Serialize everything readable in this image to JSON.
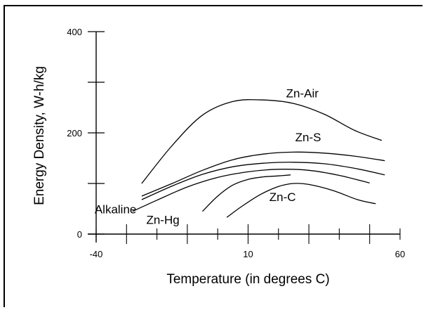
{
  "chart_data": {
    "type": "line",
    "title": "",
    "xlabel": "Temperature (in degrees C)",
    "ylabel": "Energy Density, W-h/kg",
    "xlim": [
      -40,
      60
    ],
    "ylim": [
      0,
      400
    ],
    "x_tick_labels": [
      {
        "value": -40,
        "label": "-40"
      },
      {
        "value": 10,
        "label": "10"
      },
      {
        "value": 60,
        "label": "60"
      }
    ],
    "x_ticks": [
      -40,
      -30,
      -20,
      -10,
      0,
      10,
      20,
      30,
      40,
      50,
      60
    ],
    "x_major_ticks": [
      -30,
      -10,
      10,
      30,
      50
    ],
    "y_tick_labels": [
      {
        "value": 0,
        "label": "0"
      },
      {
        "value": 200,
        "label": "200"
      },
      {
        "value": 400,
        "label": "400"
      }
    ],
    "y_ticks": [
      0,
      100,
      200,
      300,
      400
    ],
    "grid": false,
    "legend": "none",
    "series": [
      {
        "name": "Zn-Air",
        "label_at": [
          22.5,
          270
        ],
        "points": [
          [
            -25,
            100
          ],
          [
            -15,
            175
          ],
          [
            -5,
            235
          ],
          [
            5,
            262
          ],
          [
            15,
            265
          ],
          [
            25,
            258
          ],
          [
            35,
            237
          ],
          [
            45,
            205
          ],
          [
            54,
            185
          ]
        ]
      },
      {
        "name": "Zn-S",
        "label_at": [
          25.5,
          183
        ],
        "points": [
          [
            -25,
            75
          ],
          [
            -15,
            100
          ],
          [
            -5,
            126
          ],
          [
            5,
            147
          ],
          [
            15,
            158
          ],
          [
            25,
            162
          ],
          [
            35,
            160
          ],
          [
            45,
            154
          ],
          [
            55,
            145
          ]
        ]
      },
      {
        "name": "",
        "points": [
          [
            -25,
            68
          ],
          [
            -15,
            95
          ],
          [
            -5,
            118
          ],
          [
            5,
            133
          ],
          [
            15,
            140
          ],
          [
            25,
            142
          ],
          [
            35,
            139
          ],
          [
            45,
            130
          ],
          [
            55,
            117
          ]
        ]
      },
      {
        "name": "Alkaline",
        "label_at": [
          -40.5,
          41
        ],
        "points": [
          [
            -28,
            45
          ],
          [
            -20,
            67
          ],
          [
            -10,
            93
          ],
          [
            0,
            112
          ],
          [
            10,
            123
          ],
          [
            20,
            128
          ],
          [
            30,
            126
          ],
          [
            40,
            116
          ],
          [
            50,
            101
          ]
        ]
      },
      {
        "name": "Zn-Hg",
        "label_at": [
          -23.5,
          20
        ],
        "points": [
          [
            -5,
            45
          ],
          [
            0,
            75
          ],
          [
            5,
            97
          ],
          [
            10,
            108
          ],
          [
            15,
            113
          ],
          [
            20,
            115
          ],
          [
            24,
            117
          ]
        ]
      },
      {
        "name": "Zn-C",
        "label_at": [
          17,
          65
        ],
        "points": [
          [
            3,
            33
          ],
          [
            8,
            55
          ],
          [
            14,
            78
          ],
          [
            20,
            94
          ],
          [
            25,
            100
          ],
          [
            30,
            98
          ],
          [
            38,
            86
          ],
          [
            46,
            68
          ],
          [
            52,
            60
          ]
        ]
      }
    ]
  }
}
